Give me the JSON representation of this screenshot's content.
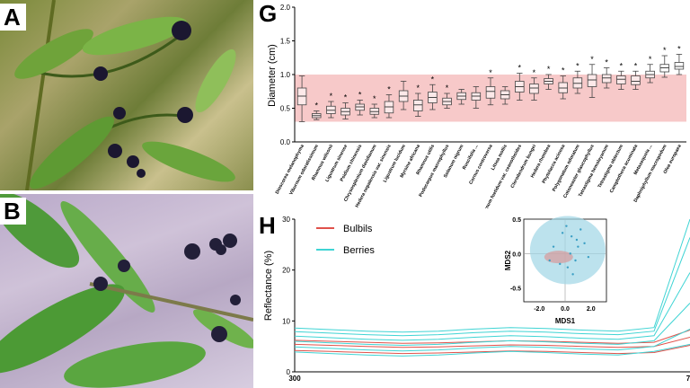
{
  "panels": {
    "a_label": "A",
    "b_label": "B",
    "g_label": "G",
    "h_label": "H"
  },
  "colors": {
    "band": "#f7c9c9",
    "box": "#444444",
    "bulbils": "#e0524b",
    "berries": "#3fd4d4",
    "mds_circle": "#9fd6e6",
    "mds_points_berries": "#3b9fc4",
    "mds_points_bulbils": "#d89a9a"
  },
  "photos": {
    "a_icon": "berry-photo",
    "b_icon": "berry-photo"
  },
  "chart_data": [
    {
      "type": "box",
      "ylabel": "Diameter (cm)",
      "ylim": [
        0.0,
        2.0
      ],
      "yticks": [
        "0.0",
        "0.5",
        "1.0",
        "1.5",
        "2.0"
      ],
      "highlight_band": [
        0.3,
        1.0
      ],
      "categories": [
        "Dioscorea melanophyma",
        "Viburnum odoratissimum",
        "Rhamnus wilsonii",
        "Ligustrum sinense",
        "Psidium chinensis",
        "Chrysosplenium davidianum",
        "Hedera nepalensis var. sinensis",
        "Ligustrum lucidum",
        "Myrsine africana",
        "Rhamnus utilis",
        "Podocarpus macrophyllus",
        "Solanum nigrum",
        "Ruscifolia ...",
        "Cornus controversa",
        "Litsea mollis",
        "Viburnum foetidum var. ceanothoides",
        "Clerodendrum bungei",
        "Hedera rhombea",
        "Phytolacca acinosa",
        "Polygonatum odoratum",
        "Cotoneaster glaucophyllus",
        "Tetrastigma hemsleyanum",
        "Tetrastigma obtectum",
        "Camptotheca acuminata",
        "Metasequoia ...",
        "Daphniphyllum macropodum",
        "Olea europaea"
      ],
      "medians": [
        0.68,
        0.39,
        0.47,
        0.45,
        0.52,
        0.45,
        0.52,
        0.68,
        0.55,
        0.66,
        0.6,
        0.68,
        0.68,
        0.75,
        0.7,
        0.82,
        0.8,
        0.9,
        0.8,
        0.87,
        0.92,
        0.95,
        0.93,
        0.9,
        1.0,
        1.1,
        1.12
      ],
      "q1": [
        0.55,
        0.36,
        0.42,
        0.4,
        0.47,
        0.41,
        0.43,
        0.6,
        0.46,
        0.58,
        0.55,
        0.63,
        0.62,
        0.65,
        0.64,
        0.74,
        0.72,
        0.86,
        0.73,
        0.8,
        0.82,
        0.88,
        0.86,
        0.85,
        0.95,
        1.04,
        1.08
      ],
      "q3": [
        0.8,
        0.42,
        0.53,
        0.5,
        0.56,
        0.5,
        0.6,
        0.76,
        0.62,
        0.74,
        0.65,
        0.73,
        0.73,
        0.82,
        0.76,
        0.9,
        0.86,
        0.94,
        0.88,
        0.95,
        1.0,
        1.0,
        0.98,
        0.98,
        1.05,
        1.15,
        1.18
      ],
      "whisker_low": [
        0.3,
        0.33,
        0.36,
        0.34,
        0.4,
        0.36,
        0.36,
        0.48,
        0.38,
        0.48,
        0.5,
        0.56,
        0.5,
        0.55,
        0.56,
        0.62,
        0.62,
        0.78,
        0.64,
        0.72,
        0.66,
        0.8,
        0.78,
        0.78,
        0.88,
        0.96,
        1.0
      ],
      "whisker_high": [
        0.98,
        0.46,
        0.6,
        0.58,
        0.62,
        0.56,
        0.7,
        0.9,
        0.72,
        0.85,
        0.72,
        0.78,
        0.82,
        0.95,
        0.82,
        1.02,
        0.95,
        1.0,
        0.98,
        1.05,
        1.15,
        1.1,
        1.05,
        1.05,
        1.15,
        1.28,
        1.3
      ],
      "significant": [
        false,
        true,
        true,
        true,
        true,
        true,
        true,
        false,
        true,
        true,
        true,
        false,
        false,
        true,
        false,
        true,
        true,
        true,
        true,
        true,
        true,
        true,
        true,
        true,
        true,
        true,
        true
      ]
    },
    {
      "type": "line",
      "ylabel": "Reflectance (%)",
      "ylim": [
        0,
        30
      ],
      "yticks": [
        "0",
        "10",
        "20",
        "30"
      ],
      "xticks": [
        "300",
        "7"
      ],
      "series": [
        {
          "name": "Bulbils",
          "values": [
            5,
            4.8,
            4.6,
            4.4,
            4.5,
            4.7,
            4.9,
            4.8,
            4.6,
            4.4,
            4.6,
            5.4
          ]
        },
        {
          "name": "Berries",
          "values": [
            5.5,
            5.2,
            4.9,
            4.7,
            4.9,
            5.3,
            5.6,
            5.4,
            5.1,
            4.9,
            5.6,
            12.0
          ]
        }
      ],
      "inset": {
        "type": "scatter",
        "xlabel": "MDS1",
        "ylabel": "MDS2",
        "xticks": [
          "-2.0",
          "0.0",
          "2.0"
        ],
        "yticks": [
          "0.5",
          "0.0",
          "-0.5"
        ],
        "xlim": [
          -3.2,
          3.2
        ],
        "ylim": [
          -0.7,
          0.5
        ]
      }
    }
  ]
}
